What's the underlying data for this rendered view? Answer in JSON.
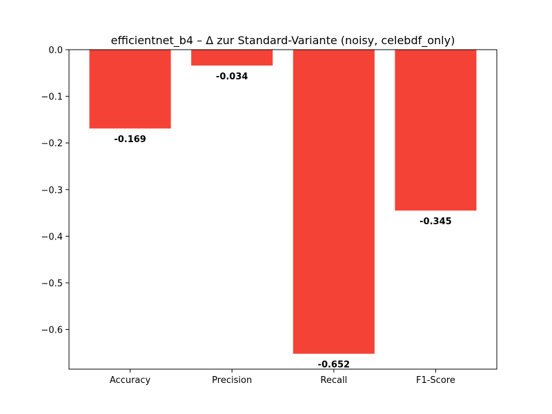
{
  "chart_data": {
    "type": "bar",
    "title": "efficientnet_b4 – Δ zur Standard-Variante (noisy, celebdf_only)",
    "xlabel": "",
    "ylabel": "",
    "categories": [
      "Accuracy",
      "Precision",
      "Recall",
      "F1-Score"
    ],
    "values": [
      -0.169,
      -0.034,
      -0.652,
      -0.345
    ],
    "value_labels": [
      "-0.169",
      "-0.034",
      "-0.652",
      "-0.345"
    ],
    "ylim": [
      -0.685,
      0.0
    ],
    "yticks": [
      0.0,
      -0.1,
      -0.2,
      -0.3,
      -0.4,
      -0.5,
      -0.6
    ],
    "ytick_labels": [
      "0.0",
      "−0.1",
      "−0.2",
      "−0.3",
      "−0.4",
      "−0.5",
      "−0.6"
    ],
    "bar_color": "#f44336",
    "grid": false,
    "legend": "none"
  }
}
